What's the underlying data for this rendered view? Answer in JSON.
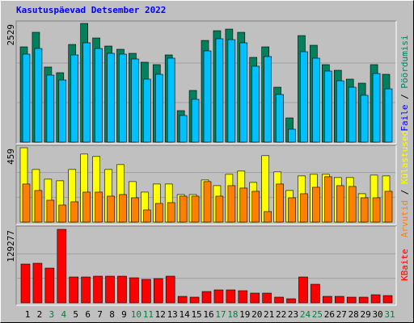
{
  "chart_data": [
    {
      "type": "bar",
      "title": "Kasutuspäevad Detsember 2022",
      "categories": [
        "1",
        "2",
        "3",
        "4",
        "5",
        "6",
        "7",
        "8",
        "9",
        "10",
        "11",
        "12",
        "13",
        "14",
        "15",
        "16",
        "17",
        "18",
        "19",
        "20",
        "21",
        "22",
        "23",
        "24",
        "25",
        "26",
        "27",
        "28",
        "29",
        "30",
        "31"
      ],
      "category_label_colors": [
        "#000000",
        "#000000",
        "#008040",
        "#008040",
        "#000000",
        "#000000",
        "#000000",
        "#000000",
        "#000000",
        "#008040",
        "#008040",
        "#000000",
        "#000000",
        "#000000",
        "#000000",
        "#000000",
        "#008040",
        "#008040",
        "#000000",
        "#000000",
        "#000000",
        "#000000",
        "#000000",
        "#008040",
        "#008040",
        "#000000",
        "#000000",
        "#000000",
        "#000000",
        "#000000",
        "#008040"
      ],
      "separator": "/",
      "ylim": [
        0,
        2529
      ],
      "yticks": [
        2529
      ],
      "grid": true,
      "series": [
        {
          "name": "Pöördumisi",
          "color": "#00805c",
          "label_color": "#00805c",
          "values": [
            2030,
            2340,
            1600,
            1479,
            2081,
            2529,
            2219,
            2047,
            1978,
            1892,
            1703,
            1651,
            1858,
            671,
            1101,
            2167,
            2374,
            2408,
            2339,
            1806,
            2030,
            1170,
            516,
            2270,
            2064,
            1651,
            1531,
            1342,
            1256,
            1651,
            1445
          ]
        },
        {
          "name": "Faile",
          "color": "#00c0ff",
          "label_color": "#0000ff",
          "values": [
            1875,
            1995,
            1428,
            1324,
            1858,
            2116,
            1995,
            1892,
            1875,
            1772,
            1342,
            1445,
            1789,
            568,
            912,
            1944,
            2202,
            2184,
            2116,
            1617,
            1823,
            1015,
            275,
            1926,
            1789,
            1514,
            1307,
            1170,
            998,
            1462,
            1135
          ]
        }
      ]
    },
    {
      "type": "bar",
      "ylim": [
        0,
        459
      ],
      "yticks": [
        459
      ],
      "grid": true,
      "series": [
        {
          "name": "Külastused",
          "color": "#ffff00",
          "label_color": "#ffff00",
          "values": [
            459,
            325,
            265,
            255,
            325,
            420,
            405,
            325,
            355,
            250,
            185,
            235,
            235,
            170,
            170,
            260,
            225,
            295,
            315,
            245,
            410,
            310,
            195,
            285,
            295,
            295,
            275,
            275,
            175,
            290,
            285
          ]
        },
        {
          "name": "Arvutid",
          "color": "#ff8000",
          "label_color": "#ff8000",
          "values": [
            235,
            195,
            135,
            105,
            125,
            185,
            185,
            160,
            170,
            150,
            75,
            115,
            120,
            160,
            160,
            250,
            160,
            225,
            210,
            190,
            65,
            235,
            150,
            175,
            215,
            280,
            225,
            220,
            150,
            150,
            190
          ]
        }
      ]
    },
    {
      "type": "bar",
      "ylim": [
        0,
        129277
      ],
      "yticks": [
        129277
      ],
      "grid": true,
      "series": [
        {
          "name": "KBaite",
          "color": "#ff0000",
          "label_color": "#ff0000",
          "values": [
            68160,
            69580,
            61060,
            129277,
            45440,
            45440,
            46860,
            46860,
            46860,
            44020,
            41180,
            42600,
            46860,
            11360,
            9940,
            19880,
            22720,
            22720,
            21300,
            17040,
            17040,
            9940,
            7100,
            45440,
            32660,
            11360,
            11360,
            9940,
            9940,
            14200,
            12780
          ]
        }
      ]
    }
  ]
}
